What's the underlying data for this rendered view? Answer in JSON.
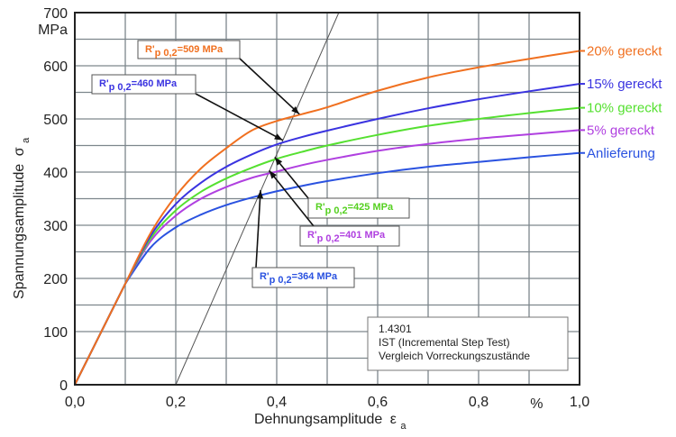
{
  "chart_data": {
    "type": "line",
    "title": "",
    "xlabel": "Dehnungsamplitude",
    "xlabel_sub": "a",
    "xlabel_symbol": "ε",
    "ylabel": "Spannungsamplitude",
    "ylabel_symbol": "σ",
    "ylabel_sub": "a",
    "xunit": "%",
    "yunit": "MPa",
    "xlim": [
      0,
      1.0
    ],
    "ylim": [
      0,
      700
    ],
    "xticks": [
      "0,0",
      "0,2",
      "0,4",
      "0,6",
      "0,8",
      "1,0"
    ],
    "xtick_values": [
      0,
      0.2,
      0.4,
      0.6,
      0.8,
      1.0
    ],
    "yticks": [
      "0",
      "100",
      "200",
      "300",
      "400",
      "500",
      "600",
      "700"
    ],
    "ytick_values": [
      0,
      100,
      200,
      300,
      400,
      500,
      600,
      700
    ],
    "grid": true,
    "grid_x_step": 0.1,
    "grid_y_step": 50,
    "elastic_end": {
      "x": 0.1,
      "y": 190
    },
    "series": [
      {
        "name": "20% gereckt",
        "color": "#f07020",
        "x": [
          0.0,
          0.1,
          0.15,
          0.2,
          0.25,
          0.3,
          0.35,
          0.4,
          0.45,
          0.5,
          0.6,
          0.7,
          0.8,
          0.9,
          1.0
        ],
        "y": [
          0,
          190,
          285,
          355,
          407,
          445,
          478,
          496,
          509,
          522,
          553,
          578,
          597,
          613,
          628
        ]
      },
      {
        "name": "15% gereckt",
        "color": "#3a33e0",
        "x": [
          0.0,
          0.1,
          0.15,
          0.2,
          0.25,
          0.3,
          0.35,
          0.4,
          0.45,
          0.5,
          0.6,
          0.7,
          0.8,
          0.9,
          1.0
        ],
        "y": [
          0,
          190,
          280,
          340,
          380,
          410,
          433,
          452,
          466,
          478,
          500,
          520,
          537,
          552,
          566
        ]
      },
      {
        "name": "10% gereckt",
        "color": "#55e030",
        "x": [
          0.0,
          0.1,
          0.15,
          0.2,
          0.25,
          0.3,
          0.35,
          0.4,
          0.45,
          0.5,
          0.6,
          0.7,
          0.8,
          0.9,
          1.0
        ],
        "y": [
          0,
          190,
          275,
          328,
          363,
          388,
          408,
          425,
          438,
          450,
          470,
          487,
          500,
          511,
          521
        ]
      },
      {
        "name": "5% gereckt",
        "color": "#b040e0",
        "x": [
          0.0,
          0.1,
          0.15,
          0.2,
          0.25,
          0.3,
          0.35,
          0.4,
          0.45,
          0.5,
          0.6,
          0.7,
          0.8,
          0.9,
          1.0
        ],
        "y": [
          0,
          190,
          270,
          318,
          350,
          372,
          389,
          401,
          413,
          423,
          440,
          453,
          463,
          471,
          479
        ]
      },
      {
        "name": "Anlieferung",
        "color": "#2a52e0",
        "x": [
          0.0,
          0.1,
          0.15,
          0.2,
          0.25,
          0.3,
          0.35,
          0.4,
          0.45,
          0.5,
          0.6,
          0.7,
          0.8,
          0.9,
          1.0
        ],
        "y": [
          0,
          190,
          258,
          296,
          320,
          338,
          352,
          364,
          374,
          383,
          398,
          410,
          419,
          428,
          436
        ]
      }
    ],
    "offset_line": {
      "x": [
        0.2,
        0.523
      ],
      "y": [
        0,
        700
      ],
      "color": "#555555"
    },
    "annotations": [
      {
        "text_main": "R'",
        "text_sub": "p 0,2",
        "text_value": "=509 MPa",
        "color": "#f07020",
        "point": {
          "x": 0.445,
          "y": 509
        }
      },
      {
        "text_main": "R'",
        "text_sub": "p 0,2",
        "text_value": "=460 MPa",
        "color": "#3a33e0",
        "point": {
          "x": 0.412,
          "y": 460
        }
      },
      {
        "text_main": "R'",
        "text_sub": "p 0,2",
        "text_value": "=425 MPa",
        "color": "#55d020",
        "point": {
          "x": 0.396,
          "y": 428
        }
      },
      {
        "text_main": "R'",
        "text_sub": "p 0,2",
        "text_value": "=401 MPa",
        "color": "#b040e0",
        "point": {
          "x": 0.385,
          "y": 403
        }
      },
      {
        "text_main": "R'",
        "text_sub": "p 0,2",
        "text_value": "=364 MPa",
        "color": "#2a52e0",
        "point": {
          "x": 0.368,
          "y": 366
        }
      }
    ],
    "info_box": [
      "1.4301",
      "IST (Incremental Step Test)",
      "Vergleich Vorreckungszustände"
    ],
    "legend_placement": "right"
  }
}
